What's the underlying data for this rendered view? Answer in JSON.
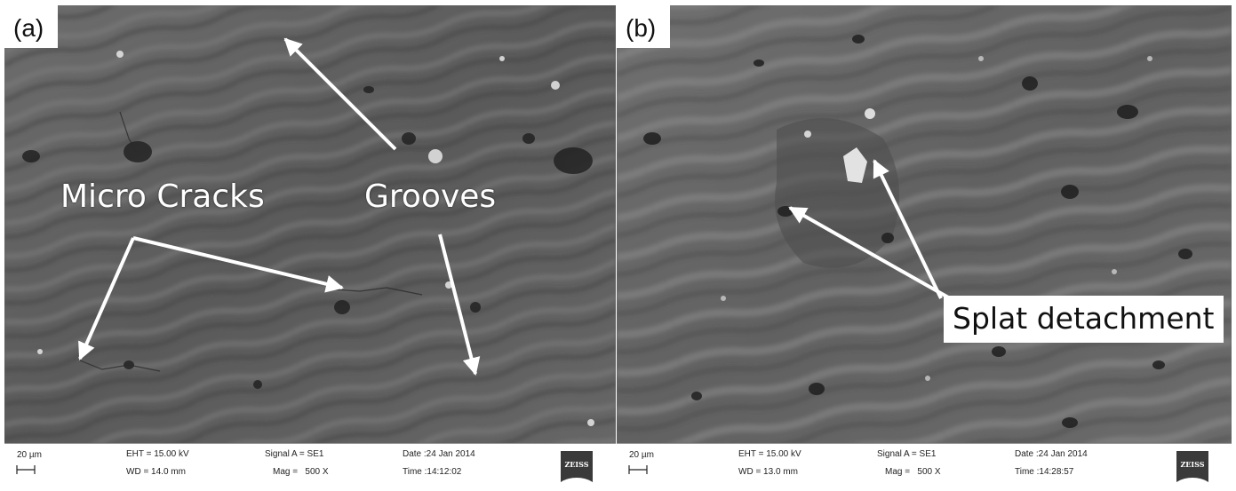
{
  "panels": {
    "a": {
      "label": "(a)",
      "annotations": {
        "micro_cracks": "Micro Cracks",
        "grooves": "Grooves"
      },
      "databar": {
        "scale": "20 µm",
        "eht": "EHT = 15.00 kV",
        "wd": "WD = 14.0 mm",
        "signal": "Signal A = SE1",
        "mag": "Mag =   500 X",
        "date": "Date :24 Jan 2014",
        "time": "Time :14:12:02",
        "logo": "ZEISS"
      }
    },
    "b": {
      "label": "(b)",
      "annotations": {
        "splat": "Splat detachment"
      },
      "databar": {
        "scale": "20 µm",
        "eht": "EHT = 15.00 kV",
        "wd": "WD = 13.0 mm",
        "signal": "Signal A = SE1",
        "mag": "Mag =   500 X",
        "date": "Date :24 Jan 2014",
        "time": "Time :14:28:57",
        "logo": "ZEISS"
      }
    }
  },
  "colors": {
    "sem_base": "#5e5e5e",
    "arrow": "#ffffff",
    "databar_bg": "#ffffff"
  }
}
